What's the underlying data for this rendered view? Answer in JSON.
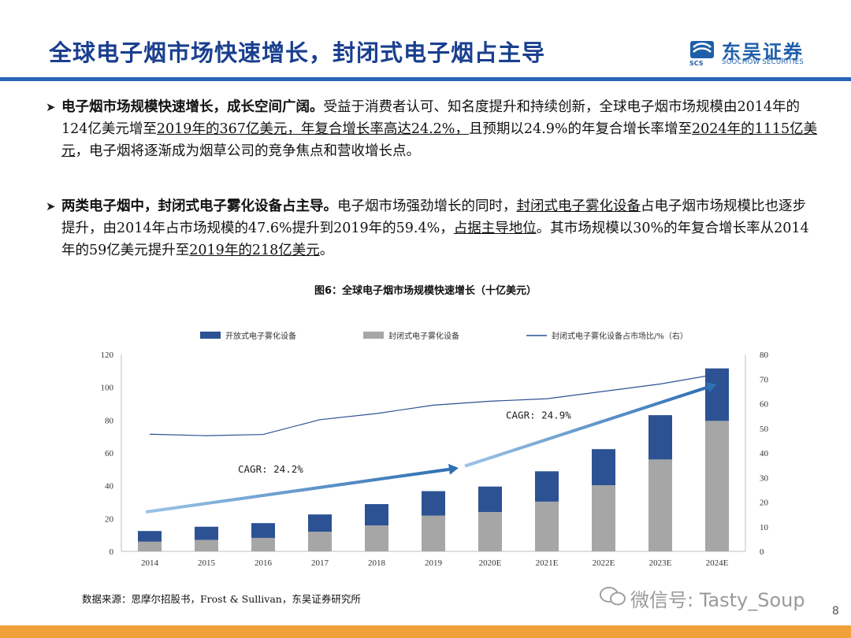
{
  "header": {
    "title": "全球电子烟市场快速增长，封闭式电子烟占主导",
    "logo_cn": "东吴证券",
    "logo_en": "SOOCHOW SECURITIES",
    "logo_mark": "SCS"
  },
  "para1": {
    "bold": "电子烟市场规模快速增长，成长空间广阔。",
    "t1": "受益于消费者认可、知名度提升和持续创新，全球电子烟市场规模由2014年的124亿美元增至",
    "u1": "2019年的367亿美元，年复合增长率高达24.2%，",
    "t2": "且预期以24.9%的年复合增长率增至",
    "u2": "2024年的1115亿美元",
    "t3": "，电子烟将逐渐成为烟草公司的竞争焦点和营收增长点。"
  },
  "para2": {
    "bold": "两类电子烟中，封闭式电子雾化设备占主导。",
    "t1": "电子烟市场强劲增长的同时，",
    "u1": "封闭式电子雾化设备",
    "t2": "占电子烟市场规模比也逐步提升，由2014年占市场规模的47.6%提升到2019年的59.4%，",
    "u2": "占据主导地位",
    "t3": "。其市场规模以30%的年复合增长率从2014年的59亿美元提升至",
    "u3": "2019年的218亿美元",
    "t4": "。"
  },
  "figure_title": "图6：全球电子烟市场规模快速增长（十亿美元）",
  "source": "数据来源：思摩尔招股书，Frost & Sullivan，东吴证券研究所",
  "watermark": "微信号: Tasty_Soup",
  "page_number": "8",
  "chart_data": {
    "type": "bar",
    "stacked": true,
    "title": "全球电子烟市场规模快速增长（十亿美元）",
    "categories": [
      "2014",
      "2015",
      "2016",
      "2017",
      "2018",
      "2019",
      "2020E",
      "2021E",
      "2022E",
      "2023E",
      "2024E"
    ],
    "series": [
      {
        "name": "开放式电子雾化设备",
        "kind": "bar",
        "color": "#2c5294",
        "values": [
          6.5,
          8,
          9,
          10.5,
          13,
          14.9,
          15.5,
          18.5,
          22,
          27,
          32
        ]
      },
      {
        "name": "封闭式电子雾化设备",
        "kind": "bar",
        "color": "#a6a6a6",
        "values": [
          5.9,
          7,
          8.2,
          12,
          15.8,
          21.8,
          24,
          30.3,
          40.3,
          56,
          79.5
        ]
      },
      {
        "name": "封闭式电子雾化设备占市场比/%（右）",
        "kind": "line",
        "axis": "right",
        "color": "#2c5294",
        "values": [
          47.6,
          47,
          47.5,
          53.5,
          56,
          59.4,
          61,
          62,
          65,
          68,
          72
        ]
      }
    ],
    "ylim_left": [
      0,
      120
    ],
    "yticks_left": [
      0,
      20,
      40,
      60,
      80,
      100,
      120
    ],
    "ylim_right": [
      0,
      80
    ],
    "yticks_right": [
      0,
      10,
      20,
      30,
      40,
      50,
      60,
      70,
      80
    ],
    "legend_position": "top",
    "annotations": [
      {
        "text": "CAGR: 24.2%",
        "from": "2014",
        "to": "2019"
      },
      {
        "text": "CAGR: 24.9%",
        "from": "2019",
        "to": "2024E"
      }
    ]
  }
}
